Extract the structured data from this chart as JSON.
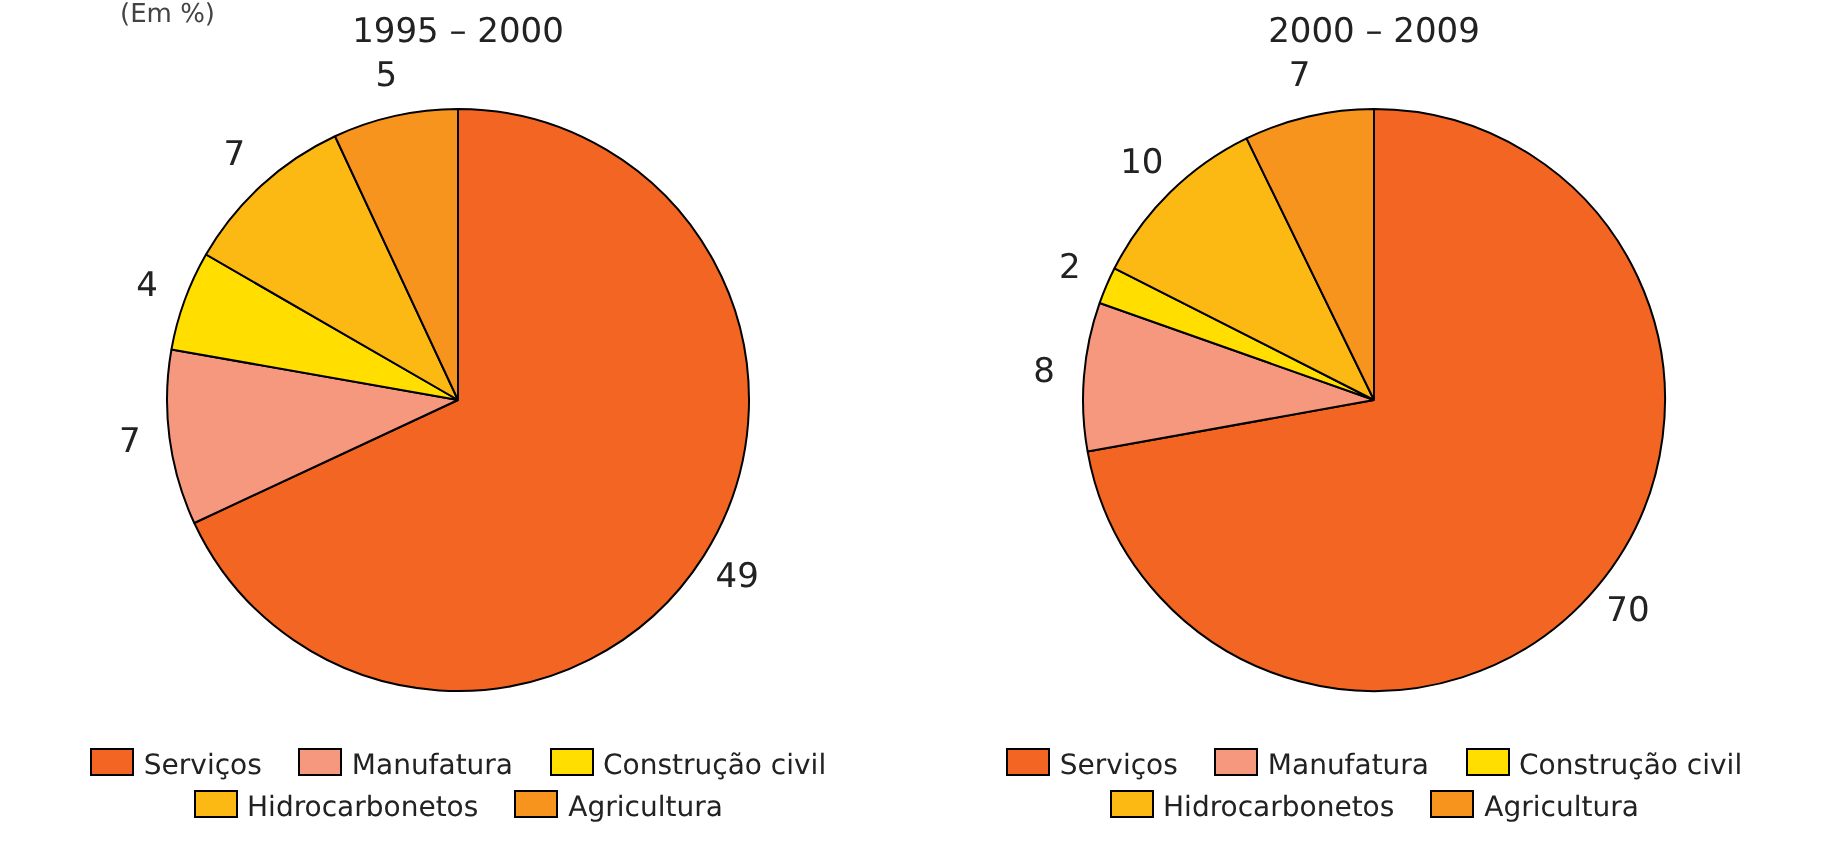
{
  "chart_data": [
    {
      "type": "pie",
      "title": "1995 – 2000",
      "annotations": [
        "(Em %)"
      ],
      "categories": [
        "Serviços",
        "Manufatura",
        "Construção civil",
        "Hidrocarbonetos",
        "Agricultura"
      ],
      "values": [
        49,
        7,
        4,
        7,
        5
      ],
      "colors": [
        "#f26522",
        "#f5987e",
        "#ffde00",
        "#fdb913",
        "#f7941d"
      ],
      "data_labels": true,
      "legend": "bottom"
    },
    {
      "type": "pie",
      "title": "2000 – 2009",
      "categories": [
        "Serviços",
        "Manufatura",
        "Construção civil",
        "Hidrocarbonetos",
        "Agricultura"
      ],
      "values": [
        70,
        8,
        2,
        10,
        7
      ],
      "colors": [
        "#f26522",
        "#f5987e",
        "#ffde00",
        "#fdb913",
        "#f7941d"
      ],
      "data_labels": true,
      "legend": "bottom"
    }
  ]
}
